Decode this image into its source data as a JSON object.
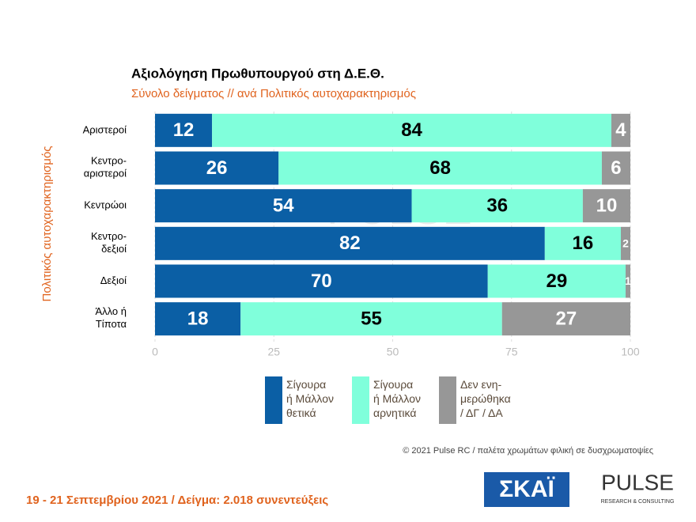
{
  "chart_data": {
    "type": "stacked-bar",
    "title": "Αξιολόγηση Πρωθυπουργού στη Δ.Ε.Θ.",
    "subtitle": "Σύνολο δείγματος // ανά Πολιτικός αυτοχαρακτηρισμός",
    "y_label": "Πολιτικός αυτοχαρακτηρισμός",
    "categories": [
      "Αριστεροί",
      "Κεντρο-\nαριστεροί",
      "Κεντρώοι",
      "Κεντρο-\nδεξιοί",
      "Δεξιοί",
      "Άλλο ή\nΤίποτα"
    ],
    "series": [
      {
        "name": "Σίγουρα\nή Μάλλον\nθετικά",
        "color": "#0b5fa5",
        "label_color": "#ffffff",
        "values": [
          12,
          26,
          54,
          82,
          70,
          18
        ]
      },
      {
        "name": "Σίγουρα\nή Μάλλον\nαρνητικά",
        "color": "#80ffdb",
        "label_color": "#000000",
        "values": [
          84,
          68,
          36,
          16,
          29,
          55
        ]
      },
      {
        "name": "Δεν ενη-\nμερώθηκα\n/ ΔΓ / ΔΑ",
        "color": "#979797",
        "label_color": "#ffffff",
        "values": [
          4,
          6,
          10,
          2,
          1,
          27
        ]
      }
    ],
    "xlim": [
      0,
      100
    ],
    "xticks": [
      0,
      25,
      50,
      75,
      100
    ],
    "grid": true
  },
  "footer": {
    "credit": "© 2021 Pulse RC  /  παλέτα χρωμάτων φιλική σε δυσχρωματοψίες",
    "fieldwork": "19 - 21 Σεπτεμβρίου 2021  /  Δείγμα:  2.018 συνεντεύξεις"
  },
  "logos": {
    "skai": "ΣΚΑΪ",
    "pulse": "PULSE",
    "pulse_tagline": "RESEARCH & CONSULTING"
  }
}
